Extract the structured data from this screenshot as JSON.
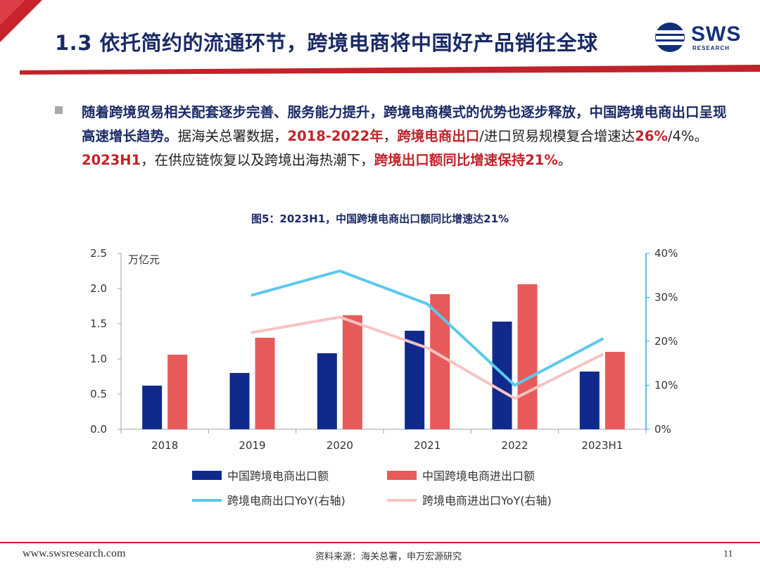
{
  "header": {
    "title": "1.3 依托简约的流通环节，跨境电商将中国好产品销往全球",
    "logo_text": "SWS",
    "logo_sub": "RESEARCH"
  },
  "body": {
    "segments": [
      {
        "text": "随着跨境贸易相关配套逐步完善、服务能力提升，跨境电商模式的优势也逐步释放，中国跨境电商出口呈现高速增长趋势。",
        "style": "b"
      },
      {
        "text": "据海关总署数据，",
        "style": ""
      },
      {
        "text": "2018-2022年",
        "style": "r"
      },
      {
        "text": "，",
        "style": ""
      },
      {
        "text": "跨境电商出口",
        "style": "r"
      },
      {
        "text": "/进口贸易规模复合增速达",
        "style": ""
      },
      {
        "text": "26%",
        "style": "r"
      },
      {
        "text": "/4%。",
        "style": ""
      },
      {
        "text": "2023H1",
        "style": "r"
      },
      {
        "text": "，在供应链恢复以及跨境出海热潮下，",
        "style": ""
      },
      {
        "text": "跨境出口额同比增速保持21%",
        "style": "r"
      },
      {
        "text": "。",
        "style": ""
      }
    ]
  },
  "chart_title": "图5：2023H1，中国跨境电商出口额同比增速达21%",
  "chart_data": {
    "type": "bar",
    "categories": [
      "2018",
      "2019",
      "2020",
      "2021",
      "2022",
      "2023H1"
    ],
    "y_left": {
      "label": "万亿元",
      "min": 0,
      "max": 2.5,
      "ticks": [
        "0.0",
        "0.5",
        "1.0",
        "1.5",
        "2.0",
        "2.5"
      ]
    },
    "y_right": {
      "min": 0,
      "max": 40,
      "ticks": [
        "0%",
        "10%",
        "20%",
        "30%",
        "40%"
      ]
    },
    "bar_series": [
      {
        "name": "中国跨境电商出口额",
        "color": "#0f2a8c",
        "values": [
          0.62,
          0.8,
          1.08,
          1.4,
          1.53,
          0.82
        ]
      },
      {
        "name": "中国跨境电商进出口额",
        "color": "#e85a5a",
        "values": [
          1.06,
          1.3,
          1.62,
          1.92,
          2.06,
          1.1
        ]
      }
    ],
    "line_series": [
      {
        "name": "跨境电商出口YoY(右轴)",
        "color": "#5bc8ee",
        "axis": "right",
        "values": [
          null,
          30.5,
          36,
          28.5,
          10,
          20.5
        ]
      },
      {
        "name": "跨境电商进出口YoY(右轴)",
        "color": "#f7c3c3",
        "axis": "right",
        "values": [
          null,
          22,
          25.5,
          18.5,
          7,
          17
        ]
      }
    ],
    "grid": false,
    "legend_position": "bottom"
  },
  "footer": {
    "url": "www.swsresearch.com",
    "source": "资料来源：海关总署，申万宏源研究",
    "page": "11"
  }
}
